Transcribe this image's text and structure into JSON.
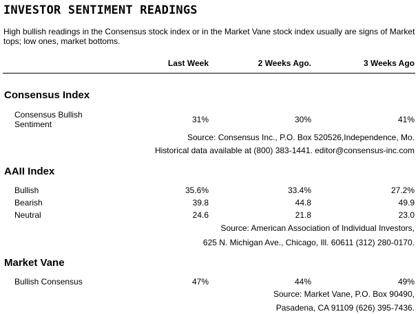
{
  "title": "INVESTOR SENTIMENT READINGS",
  "intro": "High bullish readings in the Consensus stock index or in the Market Vane stock index usually are signs of Market tops; low ones, market bottoms.",
  "columns": [
    "Last Week",
    "2 Weeks Ago.",
    "3 Weeks Ago"
  ],
  "sections": [
    {
      "name": "Consensus Index",
      "rows": [
        {
          "label_line1": "Consensus Bullish",
          "label_line2": "Sentiment",
          "values": [
            "31%",
            "30%",
            "41%"
          ]
        }
      ],
      "source_lines": [
        "Source: Consensus Inc., P.O. Box 520526,Independence, Mo.",
        "Historical data available at (800) 383-1441. editor@consensus-inc.com"
      ]
    },
    {
      "name": "AAII Index",
      "rows": [
        {
          "label": "Bullish",
          "values": [
            "35.6%",
            "33.4%",
            "27.2%"
          ]
        },
        {
          "label": "Bearish",
          "values": [
            "39.8",
            "44.8",
            "49.9"
          ]
        },
        {
          "label": "Neutral",
          "values": [
            "24.6",
            "21.8",
            "23.0"
          ]
        }
      ],
      "source_lines": [
        "Source: American Association of Individual Investors,",
        "625 N. Michigan Ave., Chicago, Ill. 60611 (312) 280-0170."
      ]
    },
    {
      "name": "Market Vane",
      "rows": [
        {
          "label": "Bullish Consensus",
          "values": [
            "47%",
            "44%",
            "49%"
          ]
        }
      ],
      "source_lines": [
        "Source: Market Vane, P.O. Box 90490,",
        "Pasadena, CA 91109 (626) 395-7436."
      ]
    }
  ]
}
